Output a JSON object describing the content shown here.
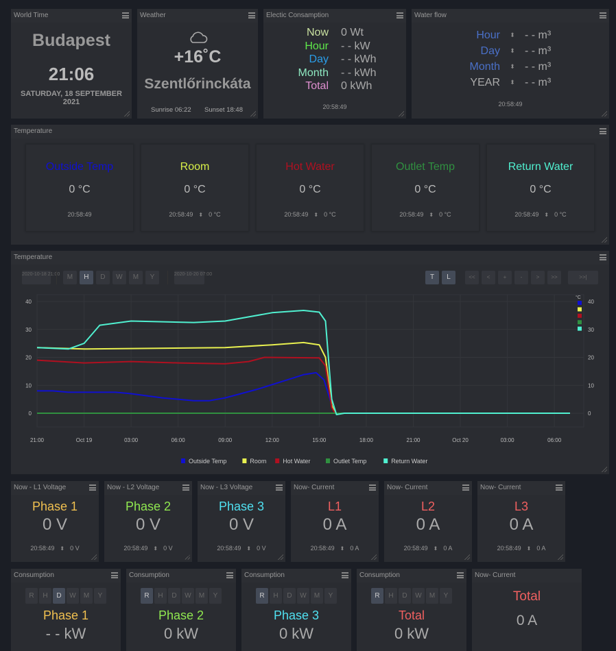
{
  "world_time": {
    "title": "World Time",
    "city": "Budapest",
    "time": "21:06",
    "date": "SATURDAY, 18 SEPTEMBER 2021"
  },
  "weather": {
    "title": "Weather",
    "icon": "cloud-icon",
    "temp": "+16˚C",
    "location": "Szentlőrinckáta",
    "sunrise": "Sunrise 06:22",
    "sunset": "Sunset 18:48"
  },
  "electric": {
    "title": "Electic Consamption",
    "rows": [
      {
        "label": "Now",
        "value": "0 Wt",
        "color": "#c8e0a0"
      },
      {
        "label": "Hour",
        "value": "- - kW",
        "color": "#5ee84a"
      },
      {
        "label": "Day",
        "value": "- - kWh",
        "color": "#2a9de8"
      },
      {
        "label": "Month",
        "value": "- - kWh",
        "color": "#8ee8c0"
      },
      {
        "label": "Total",
        "value": "0 kWh",
        "color": "#e090d0"
      }
    ],
    "time": "20:58:49"
  },
  "water": {
    "title": "Water flow",
    "rows": [
      {
        "label": "Hour",
        "value": "- - m³",
        "color": "#4a70c8"
      },
      {
        "label": "Day",
        "value": "- - m³",
        "color": "#4a70c8"
      },
      {
        "label": "Month",
        "value": "- - m³",
        "color": "#4a70c8"
      },
      {
        "label": "YEAR",
        "value": "- - m³",
        "color": "#aaaaaa"
      }
    ],
    "time": "20:58:49"
  },
  "temperature": {
    "title": "Temperature",
    "cards": [
      {
        "label": "Outside Temp",
        "color": "#1010d0",
        "value": "0 °C",
        "time": "20:58:49",
        "delta": ""
      },
      {
        "label": "Room",
        "color": "#d8f048",
        "value": "0 °C",
        "time": "20:58:49",
        "delta": "0 °C"
      },
      {
        "label": "Hot Water",
        "color": "#b01020",
        "value": "0 °C",
        "time": "20:58:49",
        "delta": "0 °C"
      },
      {
        "label": "Outlet Temp",
        "color": "#309040",
        "value": "0 °C",
        "time": "20:58:49",
        "delta": "0 °C"
      },
      {
        "label": "Return Water",
        "color": "#50f0d0",
        "value": "0 °C",
        "time": "20:58:49",
        "delta": "0 °C"
      }
    ]
  },
  "chart_panel": {
    "title": "Temperature",
    "start": "2020-10-18 21:00",
    "end": "2020-10-20 07:00",
    "periods": [
      "M",
      "H",
      "D",
      "W",
      "M",
      "Y"
    ],
    "active_period": 1,
    "modes": [
      "T",
      "L"
    ],
    "nav": [
      "<<",
      "<",
      "+",
      "-",
      ">",
      ">>",
      ">>|"
    ]
  },
  "chart_data": {
    "type": "line",
    "ylabel": "°C",
    "ylim": [
      0,
      40
    ],
    "yticks": [
      0,
      10,
      20,
      30,
      40
    ],
    "grid": true,
    "legend": "bottom",
    "xlim_hours": [
      0,
      34
    ],
    "xticks": [
      {
        "h": 0,
        "label": "21:00"
      },
      {
        "h": 3,
        "label": "Oct 19"
      },
      {
        "h": 6,
        "label": "03:00"
      },
      {
        "h": 9,
        "label": "06:00"
      },
      {
        "h": 12,
        "label": "09:00"
      },
      {
        "h": 15,
        "label": "12:00"
      },
      {
        "h": 18,
        "label": "15:00"
      },
      {
        "h": 21,
        "label": "18:00"
      },
      {
        "h": 24,
        "label": "21:00"
      },
      {
        "h": 27,
        "label": "Oct 20"
      },
      {
        "h": 30,
        "label": "03:00"
      },
      {
        "h": 33,
        "label": "06:00"
      }
    ],
    "series": [
      {
        "name": "Outside Temp",
        "color": "#1010d0",
        "points": [
          [
            0,
            8
          ],
          [
            1,
            8
          ],
          [
            2,
            7.5
          ],
          [
            5,
            7.5
          ],
          [
            6,
            7
          ],
          [
            8,
            5.5
          ],
          [
            10,
            4.5
          ],
          [
            11,
            4.5
          ],
          [
            12,
            5.5
          ],
          [
            14,
            8.5
          ],
          [
            16,
            12
          ],
          [
            17,
            13.8
          ],
          [
            17.8,
            14.5
          ],
          [
            18.3,
            12
          ],
          [
            18.8,
            3
          ],
          [
            19,
            0
          ],
          [
            34,
            0
          ]
        ]
      },
      {
        "name": "Room",
        "color": "#e8f050",
        "points": [
          [
            0,
            23.5
          ],
          [
            3,
            23
          ],
          [
            12,
            23.5
          ],
          [
            15,
            24.5
          ],
          [
            17,
            25.3
          ],
          [
            18,
            24.5
          ],
          [
            18.4,
            20
          ],
          [
            18.8,
            3
          ],
          [
            19,
            0
          ],
          [
            34,
            0
          ]
        ]
      },
      {
        "name": "Hot Water",
        "color": "#b01020",
        "points": [
          [
            0,
            19
          ],
          [
            3,
            18
          ],
          [
            6,
            18.5
          ],
          [
            9,
            18
          ],
          [
            12,
            17.7
          ],
          [
            13.5,
            18.5
          ],
          [
            14.5,
            20
          ],
          [
            18,
            19.8
          ],
          [
            18.4,
            17
          ],
          [
            18.8,
            2
          ],
          [
            19,
            0
          ],
          [
            34,
            0
          ]
        ]
      },
      {
        "name": "Outlet Temp",
        "color": "#309040",
        "points": [
          [
            0,
            0
          ],
          [
            34,
            0
          ]
        ]
      },
      {
        "name": "Return Water",
        "color": "#50f0d0",
        "points": [
          [
            0,
            23.5
          ],
          [
            2,
            23
          ],
          [
            3,
            25
          ],
          [
            4,
            31.5
          ],
          [
            6,
            33
          ],
          [
            10,
            32.5
          ],
          [
            12,
            33
          ],
          [
            15,
            36
          ],
          [
            17,
            36.8
          ],
          [
            18,
            36.2
          ],
          [
            18.4,
            33
          ],
          [
            18.8,
            5
          ],
          [
            19.1,
            -0.5
          ],
          [
            19.6,
            0
          ],
          [
            34,
            0
          ]
        ]
      }
    ]
  },
  "voltage": [
    {
      "title": "Now - L1 Voltage",
      "label": "Phase 1",
      "color": "#f0c050",
      "value": "0 V",
      "time": "20:58:49",
      "delta": "0 V"
    },
    {
      "title": "Now - L2 Voltage",
      "label": "Phase 2",
      "color": "#90e850",
      "value": "0 V",
      "time": "20:58:49",
      "delta": "0 V"
    },
    {
      "title": "Now - L3 Voltage",
      "label": "Phase 3",
      "color": "#50e0f0",
      "value": "0 V",
      "time": "20:58:49",
      "delta": "0 V"
    },
    {
      "title": "Now- Current",
      "label": "L1",
      "color": "#f06060",
      "value": "0 A",
      "time": "20:58:49",
      "delta": "0 A"
    },
    {
      "title": "Now- Current",
      "label": "L2",
      "color": "#f06060",
      "value": "0 A",
      "time": "20:58:49",
      "delta": "0 A"
    },
    {
      "title": "Now- Current",
      "label": "L3",
      "color": "#f06060",
      "value": "0 A",
      "time": "20:58:49",
      "delta": "0 A"
    }
  ],
  "consumption": [
    {
      "title": "Consumption",
      "label": "Phase 1",
      "color": "#f0c050",
      "value": "- - kW",
      "active": 2
    },
    {
      "title": "Consumption",
      "label": "Phase 2",
      "color": "#90e850",
      "value": "0 kW",
      "active": 0
    },
    {
      "title": "Consumption",
      "label": "Phase 3",
      "color": "#50e0f0",
      "value": "0 kW",
      "active": 0
    },
    {
      "title": "Consumption",
      "label": "Total",
      "color": "#f06060",
      "value": "0 kW",
      "active": 0
    }
  ],
  "consumption_buttons": [
    "R",
    "H",
    "D",
    "W",
    "M",
    "Y"
  ],
  "total_current": {
    "title": "Now- Current",
    "label": "Total",
    "color": "#f06060",
    "value": "0 A"
  }
}
